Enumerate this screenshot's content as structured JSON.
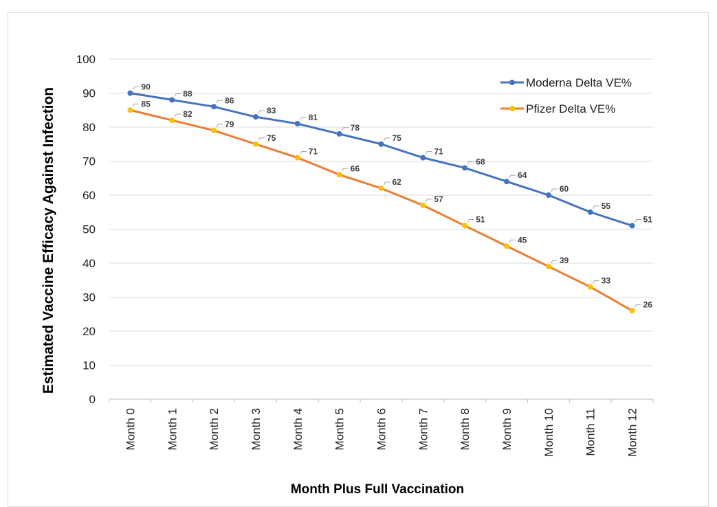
{
  "chart_data": {
    "type": "line",
    "title": "",
    "xlabel": "Month Plus Full Vaccination",
    "ylabel": "Estimated Vaccine Efficacy Against Infection",
    "categories": [
      "Month 0",
      "Month 1",
      "Month 2",
      "Month 3",
      "Month 4",
      "Month 5",
      "Month 6",
      "Month 7",
      "Month 8",
      "Month 9",
      "Month 10",
      "Month 11",
      "Month 12"
    ],
    "ylim": [
      0,
      100
    ],
    "yticks": [
      "0",
      "10",
      "20",
      "30",
      "40",
      "50",
      "60",
      "70",
      "80",
      "90",
      "100"
    ],
    "grid": true,
    "legend_position": "top-right",
    "series": [
      {
        "name": "Moderna Delta VE%",
        "color": "#4472c4",
        "values": [
          90,
          88,
          86,
          83,
          81,
          78,
          75,
          71,
          68,
          64,
          60,
          55,
          51
        ],
        "labels": [
          "90",
          "88",
          "86",
          "83",
          "81",
          "78",
          "75",
          "71",
          "68",
          "64",
          "60",
          "55",
          "51"
        ]
      },
      {
        "name": "Pfizer Delta VE%",
        "color": "#ed7d31",
        "marker_color": "#ffc000",
        "values": [
          85,
          82,
          79,
          75,
          71,
          66,
          62,
          57,
          51,
          45,
          39,
          33,
          26
        ],
        "labels": [
          "85",
          "82",
          "79",
          "75",
          "71",
          "66",
          "62",
          "57",
          "51",
          "45",
          "39",
          "33",
          "26"
        ]
      }
    ]
  }
}
